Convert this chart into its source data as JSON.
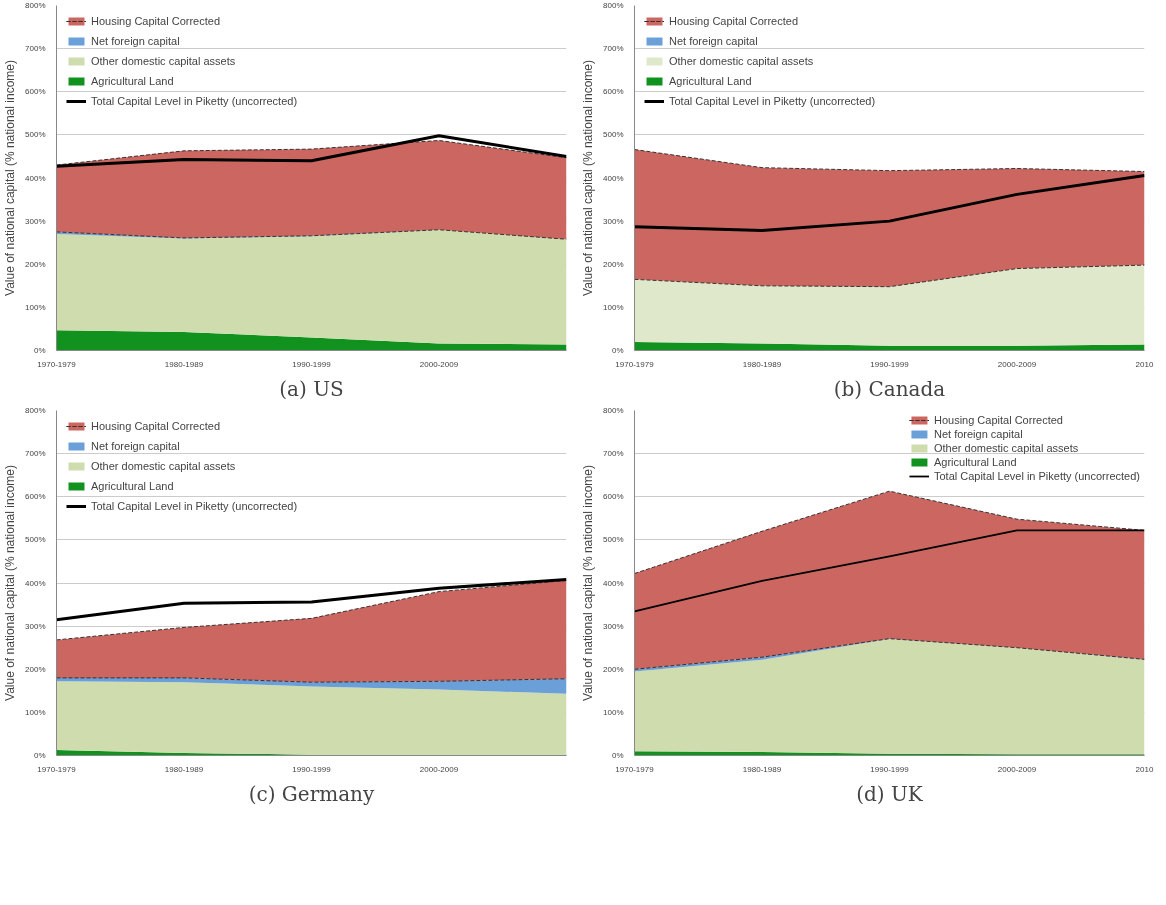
{
  "chart_data": [
    {
      "type": "area",
      "title": "(a) US",
      "stacked": true,
      "ylabel": "Value of national capital (% national income)",
      "categories": [
        "1970-1979",
        "1980-1989",
        "1990-1999",
        "2000-2009",
        null
      ],
      "ylim": [
        0,
        800
      ],
      "yticks": [
        {
          "value": 0,
          "label": "0%"
        },
        {
          "value": 100,
          "label": "100%"
        },
        {
          "value": 200,
          "label": "200%"
        },
        {
          "value": 300,
          "label": "300%"
        },
        {
          "value": 400,
          "label": "400%"
        },
        {
          "value": 500,
          "label": "500%"
        },
        {
          "value": 600,
          "label": "600%"
        },
        {
          "value": 700,
          "label": "700%"
        },
        {
          "value": 800,
          "label": "800%"
        }
      ],
      "grid": "y",
      "legend": "top left",
      "series": [
        {
          "name": "Agricultural Land",
          "color": "#11921e",
          "values": [
            47,
            43,
            30,
            16,
            14
          ]
        },
        {
          "name": "Other domestic capital assets",
          "color": "#cfddae",
          "values": [
            223,
            217,
            235,
            264,
            244
          ]
        },
        {
          "name": "Net foreign capital",
          "color": "#6a9fd8",
          "values": [
            5,
            1,
            1,
            0,
            0
          ]
        },
        {
          "name": "Housing Capital Corrected",
          "color": "#cc6660",
          "line_style": "dashed",
          "values": [
            155,
            202,
            201,
            207,
            189
          ]
        },
        {
          "name": "Total Capital Level in Piketty (uncorrected)",
          "type": "line",
          "color": "#000000",
          "values": [
            427,
            443,
            440,
            498,
            450
          ]
        }
      ]
    },
    {
      "type": "area",
      "title": "(b) Canada",
      "stacked": true,
      "ylabel": "Value of national capital (% national income)",
      "categories": [
        "1970-1979",
        "1980-1989",
        "1990-1999",
        "2000-2009",
        "2010"
      ],
      "ylim": [
        0,
        800
      ],
      "yticks": [
        {
          "value": 0,
          "label": "0%"
        },
        {
          "value": 100,
          "label": "100%"
        },
        {
          "value": 200,
          "label": "200%"
        },
        {
          "value": 300,
          "label": "300%"
        },
        {
          "value": 400,
          "label": "400%"
        },
        {
          "value": 500,
          "label": "500%"
        },
        {
          "value": 600,
          "label": "600%"
        },
        {
          "value": 700,
          "label": "700%"
        },
        {
          "value": 800,
          "label": "800%"
        }
      ],
      "grid": "y",
      "legend": "top left",
      "series": [
        {
          "name": "Agricultural Land",
          "color": "#11921e",
          "values": [
            20,
            16,
            11,
            11,
            14
          ]
        },
        {
          "name": "Other domestic capital assets",
          "color": "#dfe8ca",
          "values": [
            145,
            134,
            137,
            179,
            184
          ]
        },
        {
          "name": "Net foreign capital",
          "color": "#6a9fd8",
          "values": [
            null,
            null,
            null,
            null,
            null
          ]
        },
        {
          "name": "Housing Capital Corrected",
          "color": "#cc6660",
          "line_style": "dashed",
          "values": [
            301,
            274,
            269,
            232,
            217
          ]
        },
        {
          "name": "Total Capital Level in Piketty (uncorrected)",
          "type": "line",
          "color": "#000000",
          "values": [
            287,
            278,
            300,
            362,
            406
          ]
        }
      ]
    },
    {
      "type": "area",
      "title": "(c) Germany",
      "stacked": true,
      "ylabel": "Value of national capital (% national income)",
      "categories": [
        "1970-1979",
        "1980-1989",
        "1990-1999",
        "2000-2009",
        null
      ],
      "ylim": [
        0,
        800
      ],
      "yticks": [
        {
          "value": 0,
          "label": "0%"
        },
        {
          "value": 100,
          "label": "100%"
        },
        {
          "value": 200,
          "label": "200%"
        },
        {
          "value": 300,
          "label": "300%"
        },
        {
          "value": 400,
          "label": "400%"
        },
        {
          "value": 500,
          "label": "500%"
        },
        {
          "value": 600,
          "label": "600%"
        },
        {
          "value": 700,
          "label": "700%"
        },
        {
          "value": 800,
          "label": "800%"
        }
      ],
      "grid": "y",
      "legend": "top left",
      "series": [
        {
          "name": "Agricultural Land",
          "color": "#11921e",
          "values": [
            13,
            6,
            2,
            2,
            2
          ]
        },
        {
          "name": "Other domestic capital assets",
          "color": "#cfddae",
          "values": [
            159,
            164,
            158,
            151,
            141
          ]
        },
        {
          "name": "Net foreign capital",
          "color": "#6a9fd8",
          "values": [
            8,
            10,
            10,
            19,
            35
          ]
        },
        {
          "name": "Housing Capital Corrected",
          "color": "#cc6660",
          "line_style": "dashed",
          "values": [
            88,
            117,
            148,
            208,
            228
          ]
        },
        {
          "name": "Total Capital Level in Piketty (uncorrected)",
          "type": "line",
          "color": "#000000",
          "values": [
            315,
            353,
            356,
            388,
            408
          ]
        }
      ]
    },
    {
      "type": "area",
      "title": "(d) UK",
      "stacked": true,
      "ylabel": "Value of national capital (% national income)",
      "categories": [
        "1970-1979",
        "1980-1989",
        "1990-1999",
        "2000-2009",
        "2010"
      ],
      "ylim": [
        0,
        800
      ],
      "yticks": [
        {
          "value": 0,
          "label": "0%"
        },
        {
          "value": 100,
          "label": "100%"
        },
        {
          "value": 200,
          "label": "200%"
        },
        {
          "value": 300,
          "label": "300%"
        },
        {
          "value": 400,
          "label": "400%"
        },
        {
          "value": 500,
          "label": "500%"
        },
        {
          "value": 600,
          "label": "600%"
        },
        {
          "value": 700,
          "label": "700%"
        },
        {
          "value": 800,
          "label": "800%"
        }
      ],
      "grid": "y",
      "legend": "top right",
      "series": [
        {
          "name": "Agricultural Land",
          "color": "#11921e",
          "values": [
            10,
            8,
            4,
            3,
            3
          ]
        },
        {
          "name": "Other domestic capital assets",
          "color": "#cfddae",
          "values": [
            185,
            214,
            266,
            247,
            219
          ]
        },
        {
          "name": "Net foreign capital",
          "color": "#6a9fd8",
          "values": [
            5,
            6,
            1,
            0,
            1
          ]
        },
        {
          "name": "Housing Capital Corrected",
          "color": "#cc6660",
          "line_style": "dashed",
          "values": [
            222,
            292,
            342,
            298,
            299
          ]
        },
        {
          "name": "Total Capital Level in Piketty (uncorrected)",
          "type": "line",
          "color": "#000000",
          "values": [
            334,
            405,
            462,
            522,
            522
          ]
        }
      ]
    }
  ]
}
